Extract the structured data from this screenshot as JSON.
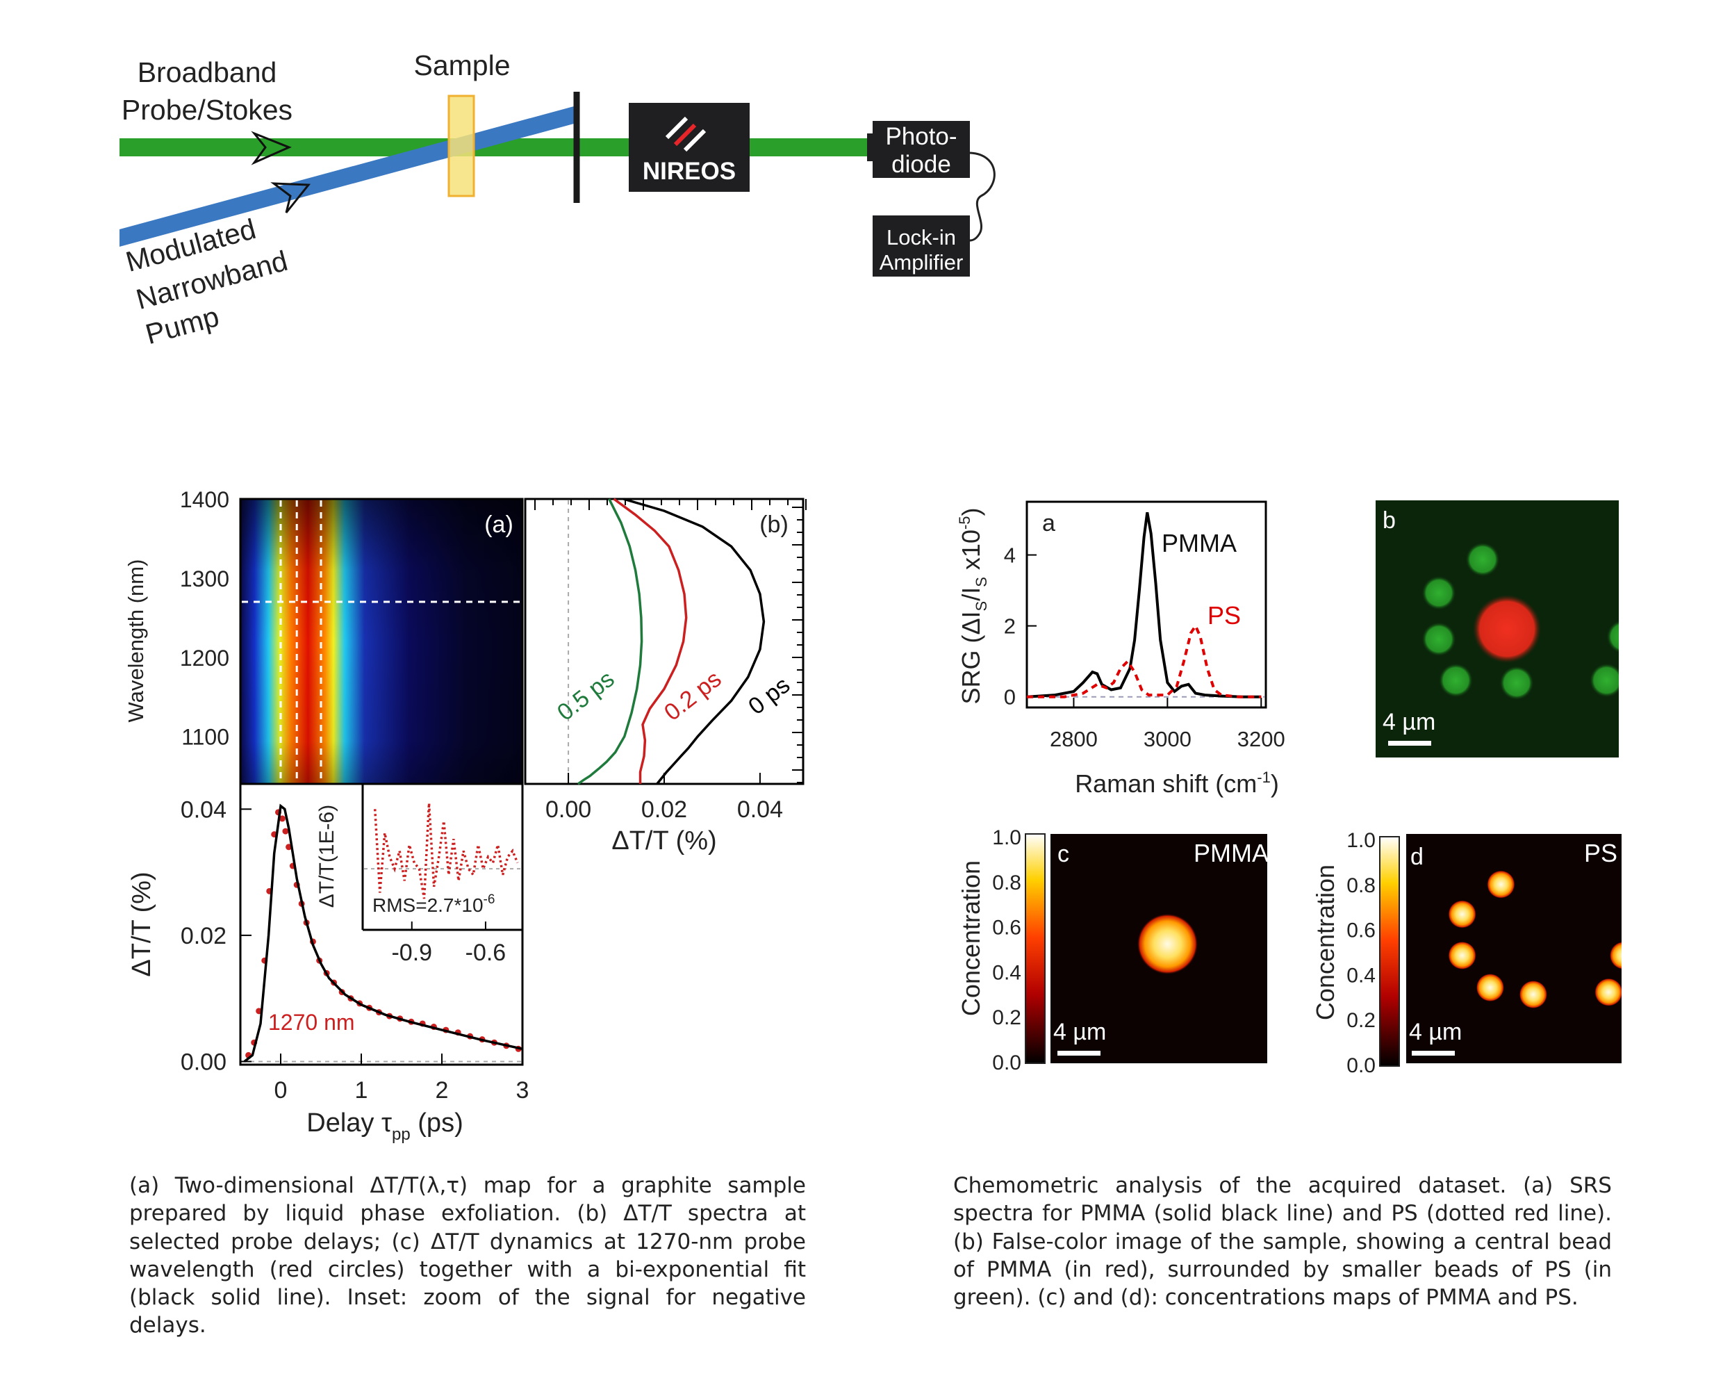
{
  "setup": {
    "probe_label": [
      "Broadband",
      "Probe/Stokes"
    ],
    "sample_label": "Sample",
    "pump_label": [
      "Modulated",
      "Narrowband",
      "Pump"
    ],
    "device_label": "NIREOS",
    "detector_label": [
      "Photo-",
      "diode"
    ],
    "lockin_label": [
      "Lock-in",
      "Amplifier"
    ],
    "colors": {
      "probe": "#2aa02a",
      "pump": "#3a78c2",
      "sample": "#f6e27a",
      "box": "#1f1f22"
    }
  },
  "captions": {
    "left": "(a) Two-dimensional ΔT/T(λ,τ) map for a graphite sample prepared by liquid phase exfoliation. (b) ΔT/T spectra at selected probe delays; (c) ΔT/T dynamics at 1270-nm probe wavelength (red circles) together with a bi-exponential fit (black solid line). Inset: zoom of the signal for negative delays.",
    "right": "Chemometric analysis of the acquired dataset. (a) SRS spectra for PMMA (solid black line) and PS (dotted red line). (b) False-color image of the sample, showing a central bead of PMMA (in red), surrounded by smaller beads of PS (in green). (c) and (d): concentrations maps of PMMA and PS."
  },
  "chart_data": [
    {
      "panel": "(a)",
      "type": "heatmap",
      "ylabel": "Wavelength (nm)",
      "yticks": [
        1100,
        1200,
        1300,
        1400
      ],
      "ylim": [
        1040,
        1400
      ],
      "xlim": [
        -0.5,
        3
      ],
      "markers": {
        "vertical_delays_ps": [
          0,
          0.2,
          0.5
        ],
        "horizontal_wavelength_nm": 1270
      },
      "colormap": "jet"
    },
    {
      "panel": "(b)",
      "type": "line",
      "xlabel": "ΔT/T (%)",
      "xticks": [
        0.0,
        0.02,
        0.04
      ],
      "xlim": [
        -0.009,
        0.049
      ],
      "ylim": [
        1040,
        1400
      ],
      "series": [
        {
          "name": "0.5 ps",
          "color": "#1e7b3c",
          "x": [
            0.0085,
            0.011,
            0.0128,
            0.014,
            0.0148,
            0.0152,
            0.0153,
            0.015,
            0.0143,
            0.0132,
            0.0117,
            0.0098,
            0.008,
            0.0065,
            0.0055,
            0.0045,
            0.0032,
            0.002
          ],
          "y": [
            1400,
            1370,
            1340,
            1310,
            1280,
            1250,
            1220,
            1190,
            1160,
            1130,
            1100,
            1080,
            1068,
            1060,
            1055,
            1050,
            1045,
            1040
          ]
        },
        {
          "name": "0.2 ps",
          "color": "#cc1f1f",
          "x": [
            0.0095,
            0.014,
            0.018,
            0.021,
            0.023,
            0.0242,
            0.0246,
            0.024,
            0.0225,
            0.02,
            0.017,
            0.0155,
            0.016,
            0.0158,
            0.015,
            0.015
          ],
          "y": [
            1400,
            1380,
            1360,
            1340,
            1310,
            1280,
            1250,
            1220,
            1190,
            1160,
            1135,
            1115,
            1095,
            1075,
            1055,
            1040
          ]
        },
        {
          "name": "0 ps",
          "color": "#000000",
          "x": [
            0.0115,
            0.02,
            0.028,
            0.034,
            0.038,
            0.04,
            0.0408,
            0.04,
            0.0375,
            0.034,
            0.03,
            0.027,
            0.025,
            0.0235,
            0.022,
            0.0205,
            0.0185
          ],
          "y": [
            1400,
            1385,
            1365,
            1340,
            1310,
            1280,
            1245,
            1210,
            1175,
            1145,
            1120,
            1100,
            1085,
            1075,
            1065,
            1055,
            1040
          ]
        }
      ]
    },
    {
      "panel": "(c)",
      "type": "line",
      "xlabel": "Delay τ",
      "xlabel_sub": "pp",
      "xlabel_unit": " (ps)",
      "ylabel": "ΔT/T (%)",
      "annotation": "1270 nm",
      "xticks": [
        0,
        1,
        2,
        3
      ],
      "yticks": [
        "0.00",
        "0.02",
        "0.04"
      ],
      "xlim": [
        -0.5,
        3
      ],
      "ylim": [
        -0.0005,
        0.044
      ],
      "series": [
        {
          "name": "fit",
          "color": "#000000",
          "x": [
            -0.45,
            -0.35,
            -0.25,
            -0.15,
            -0.08,
            0.0,
            0.05,
            0.1,
            0.15,
            0.2,
            0.3,
            0.4,
            0.5,
            0.6,
            0.8,
            1.0,
            1.3,
            1.6,
            2.0,
            2.5,
            3.0
          ],
          "y": [
            0.0,
            0.001,
            0.006,
            0.02,
            0.033,
            0.0405,
            0.04,
            0.037,
            0.033,
            0.029,
            0.023,
            0.0185,
            0.0155,
            0.0132,
            0.0106,
            0.009,
            0.0074,
            0.0063,
            0.005,
            0.0034,
            0.002
          ]
        },
        {
          "name": "data",
          "color": "#cc1f1f",
          "x": [
            -0.4,
            -0.33,
            -0.27,
            -0.2,
            -0.14,
            -0.08,
            -0.03,
            0.02,
            0.06,
            0.1,
            0.15,
            0.2,
            0.26,
            0.32,
            0.4,
            0.48,
            0.57,
            0.66,
            0.76,
            0.87,
            0.98,
            1.1,
            1.22,
            1.35,
            1.48,
            1.62,
            1.76,
            1.9,
            2.05,
            2.2,
            2.35,
            2.5,
            2.65,
            2.8,
            2.95
          ],
          "y": [
            0.001,
            0.003,
            0.008,
            0.016,
            0.027,
            0.036,
            0.0395,
            0.0385,
            0.0365,
            0.034,
            0.031,
            0.028,
            0.025,
            0.022,
            0.019,
            0.016,
            0.014,
            0.0125,
            0.011,
            0.01,
            0.0092,
            0.0085,
            0.0078,
            0.0072,
            0.0068,
            0.0063,
            0.006,
            0.0055,
            0.005,
            0.0046,
            0.004,
            0.0035,
            0.003,
            0.0025,
            0.002
          ]
        }
      ]
    },
    {
      "panel": "(c) inset",
      "type": "line",
      "ylabel": "ΔT/T(1E-6)",
      "annotation": "RMS=2.7*10",
      "annotation_sup": "-6",
      "xticks": [
        "-0.9",
        "-0.6"
      ],
      "xlim": [
        -1.1,
        -0.45
      ],
      "ylim": [
        -10,
        14
      ],
      "series": [
        {
          "name": "inset data",
          "color": "#cc1f1f",
          "x": [
            -1.05,
            -1.03,
            -1.01,
            -0.99,
            -0.97,
            -0.95,
            -0.93,
            -0.91,
            -0.89,
            -0.87,
            -0.85,
            -0.83,
            -0.81,
            -0.79,
            -0.77,
            -0.75,
            -0.73,
            -0.71,
            -0.69,
            -0.67,
            -0.65,
            -0.63,
            -0.61,
            -0.59,
            -0.57,
            -0.55,
            -0.53,
            -0.51,
            -0.49,
            -0.47
          ],
          "y": [
            10,
            -4,
            6,
            2,
            0,
            3,
            -2,
            4,
            1,
            0,
            -5,
            11,
            -3,
            2,
            8,
            -1,
            5,
            -2,
            3,
            0,
            -1,
            4,
            0,
            2,
            1,
            4,
            -1,
            2,
            3,
            1
          ]
        }
      ]
    },
    {
      "panel": "a",
      "type": "line",
      "xlabel": "Raman shift (cm",
      "xlabel_sup": "-1",
      "ylabel": "SRG (ΔI",
      "xticks": [
        2800,
        3000,
        3200
      ],
      "yticks": [
        0,
        2,
        4
      ],
      "xlim": [
        2700,
        3210
      ],
      "ylim": [
        -0.3,
        5.5
      ],
      "series": [
        {
          "name": "PMMA",
          "color": "#000000",
          "x": [
            2700,
            2760,
            2800,
            2820,
            2840,
            2850,
            2860,
            2880,
            2900,
            2920,
            2930,
            2940,
            2950,
            2957,
            2965,
            2975,
            2985,
            3000,
            3015,
            3030,
            3045,
            3060,
            3080,
            3120,
            3160,
            3200
          ],
          "y": [
            0.0,
            0.05,
            0.15,
            0.4,
            0.7,
            0.65,
            0.35,
            0.2,
            0.25,
            0.8,
            1.6,
            3.0,
            4.5,
            5.2,
            4.6,
            3.2,
            1.6,
            0.4,
            0.15,
            0.3,
            0.35,
            0.1,
            0.05,
            0.02,
            0.0,
            0.0
          ]
        },
        {
          "name": "PS",
          "color": "#e00000",
          "x": [
            2700,
            2780,
            2820,
            2850,
            2870,
            2885,
            2900,
            2915,
            2930,
            2945,
            2960,
            3000,
            3020,
            3035,
            3050,
            3060,
            3070,
            3085,
            3100,
            3115,
            3150,
            3200
          ],
          "y": [
            0.0,
            0.0,
            0.1,
            0.35,
            0.25,
            0.4,
            0.8,
            1.0,
            0.7,
            0.2,
            0.05,
            0.05,
            0.3,
            1.0,
            1.8,
            2.0,
            1.7,
            0.8,
            0.2,
            0.05,
            0.0,
            0.0
          ]
        }
      ],
      "baseline": 0
    },
    {
      "panel": "b",
      "type": "image",
      "scale_bar": "4 µm",
      "beads": [
        {
          "kind": "PMMA",
          "color": "#e02a1c",
          "cx": 0.54,
          "cy": 0.5,
          "r": 0.14
        },
        {
          "kind": "PS",
          "color": "#2e9a2e",
          "cx": 0.44,
          "cy": 0.23,
          "r": 0.07
        },
        {
          "kind": "PS",
          "color": "#2e9a2e",
          "cx": 0.26,
          "cy": 0.36,
          "r": 0.07
        },
        {
          "kind": "PS",
          "color": "#2e9a2e",
          "cx": 0.26,
          "cy": 0.54,
          "r": 0.07
        },
        {
          "kind": "PS",
          "color": "#2e9a2e",
          "cx": 0.33,
          "cy": 0.7,
          "r": 0.07
        },
        {
          "kind": "PS",
          "color": "#2e9a2e",
          "cx": 0.58,
          "cy": 0.71,
          "r": 0.07
        },
        {
          "kind": "PS",
          "color": "#2e9a2e",
          "cx": 0.95,
          "cy": 0.7,
          "r": 0.07
        },
        {
          "kind": "PS",
          "color": "#2e9a2e",
          "cx": 1.02,
          "cy": 0.53,
          "r": 0.07
        }
      ]
    },
    {
      "panel": "c",
      "type": "heatmap",
      "title": "PMMA",
      "ylabel": "Concentration",
      "scale_bar": "4 µm",
      "colorbar_ticks": [
        "0.0",
        "0.2",
        "0.4",
        "0.6",
        "0.8",
        "1.0"
      ],
      "beads": [
        {
          "cx": 0.54,
          "cy": 0.48,
          "r": 0.14,
          "value": 1.0
        }
      ]
    },
    {
      "panel": "d",
      "type": "heatmap",
      "title": "PS",
      "ylabel": "Concentration",
      "scale_bar": "4 µm",
      "colorbar_ticks": [
        "0.0",
        "0.2",
        "0.4",
        "0.6",
        "0.8",
        "1.0"
      ],
      "beads": [
        {
          "cx": 0.44,
          "cy": 0.22,
          "r": 0.065,
          "value": 1.0
        },
        {
          "cx": 0.26,
          "cy": 0.35,
          "r": 0.065,
          "value": 1.0
        },
        {
          "cx": 0.26,
          "cy": 0.53,
          "r": 0.065,
          "value": 1.0
        },
        {
          "cx": 0.39,
          "cy": 0.67,
          "r": 0.065,
          "value": 1.0
        },
        {
          "cx": 0.59,
          "cy": 0.7,
          "r": 0.065,
          "value": 1.0
        },
        {
          "cx": 0.94,
          "cy": 0.69,
          "r": 0.065,
          "value": 1.0
        },
        {
          "cx": 1.01,
          "cy": 0.53,
          "r": 0.065,
          "value": 1.0
        }
      ]
    }
  ]
}
